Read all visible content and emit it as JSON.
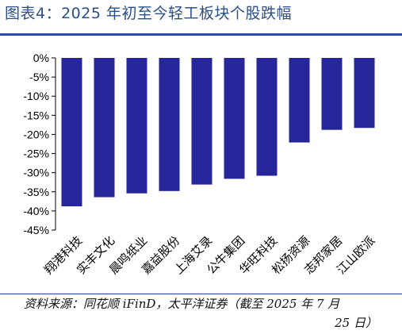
{
  "title": "图表4：2025 年初至今轻工板块个股跌幅",
  "source": {
    "line1": "资料来源：同花顺 iFinD，太平洋证券（截至 2025 年 7 月",
    "line2": "25 日）"
  },
  "colors": {
    "bar": "#26259a",
    "title": "#2a4f8a"
  },
  "chart_data": {
    "type": "bar",
    "title": "",
    "xlabel": "",
    "ylabel": "",
    "ylim": [
      -45,
      0
    ],
    "yticks": [
      0,
      -5,
      -10,
      -15,
      -20,
      -25,
      -30,
      -35,
      -40,
      -45
    ],
    "ytick_labels": [
      "0%",
      "-5%",
      "-10%",
      "-15%",
      "-20%",
      "-25%",
      "-30%",
      "-35%",
      "-40%",
      "-45%"
    ],
    "categories": [
      "翔港科技",
      "实丰文化",
      "晨鸣纸业",
      "嘉益股份",
      "上海艾录",
      "公牛集团",
      "华旺科技",
      "松扬资源",
      "志邦家居",
      "江山欧派"
    ],
    "values": [
      -38.8,
      -36.4,
      -35.4,
      -34.8,
      -33.1,
      -31.6,
      -30.8,
      -22.1,
      -18.8,
      -18.3
    ],
    "grid": false,
    "legend": "none"
  }
}
